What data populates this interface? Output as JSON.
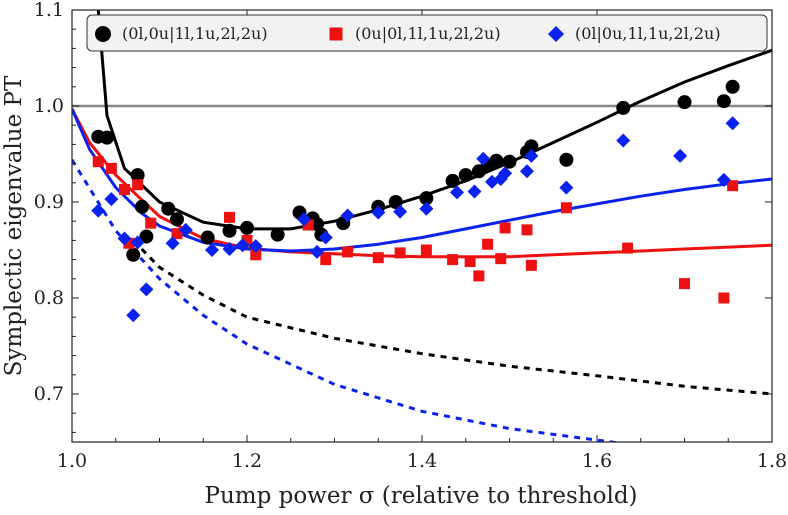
{
  "chart_data": {
    "type": "scatter",
    "xlabel": "Pump power σ (relative to threshold)",
    "ylabel": "Symplectic eigenvalue PT",
    "xlim": [
      1.0,
      1.8
    ],
    "ylim": [
      0.65,
      1.1
    ],
    "x_ticks": [
      "1.0",
      "1.2",
      "1.4",
      "1.6",
      "1.8"
    ],
    "y_ticks": [
      "0.7",
      "0.8",
      "0.9",
      "1.0",
      "1.1"
    ],
    "x_tick_values": [
      1.0,
      1.2,
      1.4,
      1.6,
      1.8
    ],
    "y_tick_values": [
      0.7,
      0.8,
      0.9,
      1.0,
      1.1
    ],
    "reference_line": {
      "y": 1.0,
      "color": "#888888"
    },
    "legend_position": "top",
    "grid": false,
    "series": [
      {
        "name": "(0l,0u|1l,1u,2l,2u)",
        "marker": "circle",
        "color": "#000000",
        "points": [
          [
            1.03,
            0.968
          ],
          [
            1.04,
            0.967
          ],
          [
            1.07,
            0.845
          ],
          [
            1.075,
            0.928
          ],
          [
            1.08,
            0.895
          ],
          [
            1.085,
            0.864
          ],
          [
            1.11,
            0.893
          ],
          [
            1.12,
            0.882
          ],
          [
            1.155,
            0.863
          ],
          [
            1.18,
            0.87
          ],
          [
            1.2,
            0.873
          ],
          [
            1.235,
            0.866
          ],
          [
            1.26,
            0.889
          ],
          [
            1.275,
            0.883
          ],
          [
            1.28,
            0.877
          ],
          [
            1.285,
            0.866
          ],
          [
            1.31,
            0.878
          ],
          [
            1.35,
            0.895
          ],
          [
            1.37,
            0.9
          ],
          [
            1.405,
            0.904
          ],
          [
            1.435,
            0.922
          ],
          [
            1.45,
            0.928
          ],
          [
            1.465,
            0.932
          ],
          [
            1.475,
            0.938
          ],
          [
            1.485,
            0.943
          ],
          [
            1.5,
            0.942
          ],
          [
            1.52,
            0.952
          ],
          [
            1.525,
            0.958
          ],
          [
            1.565,
            0.944
          ],
          [
            1.63,
            0.998
          ],
          [
            1.7,
            1.004
          ],
          [
            1.745,
            1.005
          ],
          [
            1.755,
            1.02
          ]
        ],
        "fit_line": [
          [
            1.03,
            1.1
          ],
          [
            1.04,
            0.99
          ],
          [
            1.06,
            0.935
          ],
          [
            1.1,
            0.9
          ],
          [
            1.15,
            0.879
          ],
          [
            1.2,
            0.872
          ],
          [
            1.25,
            0.872
          ],
          [
            1.3,
            0.88
          ],
          [
            1.35,
            0.892
          ],
          [
            1.4,
            0.906
          ],
          [
            1.45,
            0.922
          ],
          [
            1.5,
            0.941
          ],
          [
            1.55,
            0.962
          ],
          [
            1.6,
            0.983
          ],
          [
            1.65,
            1.005
          ],
          [
            1.7,
            1.025
          ],
          [
            1.75,
            1.042
          ],
          [
            1.8,
            1.058
          ]
        ],
        "dashed_line": [
          [
            1.07,
            0.86
          ],
          [
            1.1,
            0.832
          ],
          [
            1.15,
            0.803
          ],
          [
            1.2,
            0.78
          ],
          [
            1.3,
            0.758
          ],
          [
            1.4,
            0.742
          ],
          [
            1.5,
            0.729
          ],
          [
            1.6,
            0.719
          ],
          [
            1.7,
            0.708
          ],
          [
            1.8,
            0.7
          ]
        ]
      },
      {
        "name": "(0u|0l,1l,1u,2l,2u)",
        "marker": "square",
        "color": "#ee1111",
        "points": [
          [
            1.03,
            0.942
          ],
          [
            1.045,
            0.935
          ],
          [
            1.06,
            0.913
          ],
          [
            1.065,
            0.857
          ],
          [
            1.075,
            0.918
          ],
          [
            1.09,
            0.878
          ],
          [
            1.12,
            0.867
          ],
          [
            1.18,
            0.884
          ],
          [
            1.2,
            0.86
          ],
          [
            1.21,
            0.845
          ],
          [
            1.27,
            0.876
          ],
          [
            1.29,
            0.84
          ],
          [
            1.315,
            0.848
          ],
          [
            1.35,
            0.842
          ],
          [
            1.375,
            0.847
          ],
          [
            1.405,
            0.85
          ],
          [
            1.435,
            0.84
          ],
          [
            1.455,
            0.838
          ],
          [
            1.465,
            0.823
          ],
          [
            1.475,
            0.856
          ],
          [
            1.49,
            0.841
          ],
          [
            1.495,
            0.873
          ],
          [
            1.52,
            0.871
          ],
          [
            1.525,
            0.834
          ],
          [
            1.565,
            0.894
          ],
          [
            1.635,
            0.852
          ],
          [
            1.7,
            0.815
          ],
          [
            1.745,
            0.8
          ],
          [
            1.755,
            0.917
          ]
        ],
        "fit_line": [
          [
            1.0,
            0.997
          ],
          [
            1.02,
            0.962
          ],
          [
            1.05,
            0.928
          ],
          [
            1.08,
            0.902
          ],
          [
            1.1,
            0.885
          ],
          [
            1.15,
            0.862
          ],
          [
            1.2,
            0.852
          ],
          [
            1.25,
            0.848
          ],
          [
            1.3,
            0.846
          ],
          [
            1.35,
            0.844
          ],
          [
            1.4,
            0.843
          ],
          [
            1.45,
            0.843
          ],
          [
            1.5,
            0.843
          ],
          [
            1.55,
            0.845
          ],
          [
            1.6,
            0.847
          ],
          [
            1.65,
            0.849
          ],
          [
            1.7,
            0.851
          ],
          [
            1.75,
            0.853
          ],
          [
            1.8,
            0.855
          ]
        ]
      },
      {
        "name": "(0l|0u,1l,1u,2l,2u)",
        "marker": "diamond",
        "color": "#0a22ee",
        "points": [
          [
            1.03,
            0.891
          ],
          [
            1.045,
            0.903
          ],
          [
            1.06,
            0.862
          ],
          [
            1.07,
            0.782
          ],
          [
            1.075,
            0.858
          ],
          [
            1.085,
            0.809
          ],
          [
            1.115,
            0.857
          ],
          [
            1.13,
            0.871
          ],
          [
            1.16,
            0.85
          ],
          [
            1.18,
            0.851
          ],
          [
            1.195,
            0.855
          ],
          [
            1.21,
            0.854
          ],
          [
            1.265,
            0.882
          ],
          [
            1.28,
            0.848
          ],
          [
            1.29,
            0.863
          ],
          [
            1.315,
            0.886
          ],
          [
            1.35,
            0.889
          ],
          [
            1.375,
            0.89
          ],
          [
            1.405,
            0.893
          ],
          [
            1.44,
            0.91
          ],
          [
            1.46,
            0.911
          ],
          [
            1.47,
            0.945
          ],
          [
            1.48,
            0.921
          ],
          [
            1.49,
            0.924
          ],
          [
            1.495,
            0.93
          ],
          [
            1.52,
            0.932
          ],
          [
            1.525,
            0.948
          ],
          [
            1.565,
            0.915
          ],
          [
            1.63,
            0.964
          ],
          [
            1.695,
            0.948
          ],
          [
            1.745,
            0.923
          ],
          [
            1.755,
            0.982
          ]
        ],
        "fit_line": [
          [
            1.0,
            0.997
          ],
          [
            1.02,
            0.955
          ],
          [
            1.05,
            0.915
          ],
          [
            1.08,
            0.888
          ],
          [
            1.1,
            0.875
          ],
          [
            1.15,
            0.858
          ],
          [
            1.2,
            0.851
          ],
          [
            1.25,
            0.849
          ],
          [
            1.3,
            0.851
          ],
          [
            1.35,
            0.856
          ],
          [
            1.4,
            0.863
          ],
          [
            1.45,
            0.872
          ],
          [
            1.5,
            0.881
          ],
          [
            1.55,
            0.89
          ],
          [
            1.6,
            0.898
          ],
          [
            1.65,
            0.906
          ],
          [
            1.7,
            0.913
          ],
          [
            1.75,
            0.919
          ],
          [
            1.8,
            0.924
          ]
        ],
        "dashed_line": [
          [
            1.0,
            0.944
          ],
          [
            1.05,
            0.87
          ],
          [
            1.1,
            0.82
          ],
          [
            1.15,
            0.782
          ],
          [
            1.2,
            0.752
          ],
          [
            1.3,
            0.71
          ],
          [
            1.4,
            0.682
          ],
          [
            1.5,
            0.664
          ],
          [
            1.6,
            0.652
          ],
          [
            1.65,
            0.646
          ]
        ]
      }
    ]
  }
}
